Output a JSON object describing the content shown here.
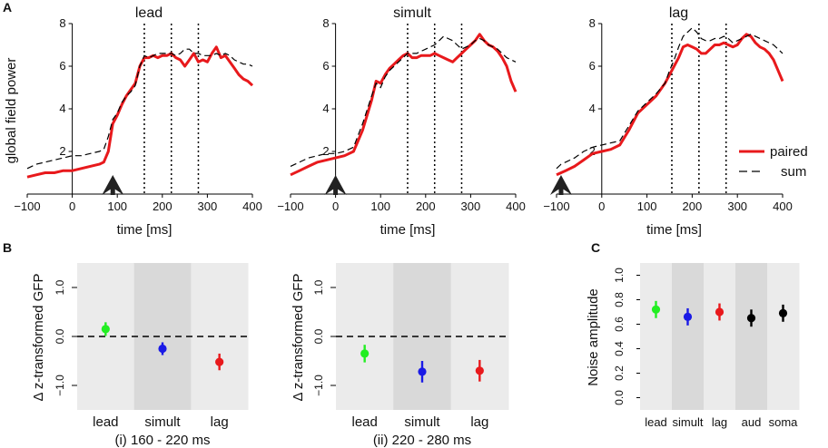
{
  "panel_labels": {
    "a": "A",
    "b": "B",
    "c": "C"
  },
  "legend": {
    "paired": "paired",
    "sum": "sum"
  },
  "colors": {
    "paired": "#e8191c",
    "sum": "#000000",
    "green": "#22ee22",
    "blue": "#1a1ae6",
    "red": "#e8191c",
    "black": "#000000",
    "bg_light": "#ebebeb",
    "bg_dark": "#d9d9d9"
  },
  "chart_data": [
    {
      "type": "line",
      "title": "lead",
      "xlabel": "time [ms]",
      "ylabel": "global field power",
      "xlim": [
        -100,
        400
      ],
      "ylim": [
        0,
        8
      ],
      "xticks": [
        "−100",
        "0",
        "100",
        "200",
        "300",
        "400"
      ],
      "xtick_values": [
        -100,
        0,
        100,
        200,
        300,
        400
      ],
      "yticks": [
        "2",
        "4",
        "6",
        "8"
      ],
      "ytick_values": [
        2,
        4,
        6,
        8
      ],
      "vlines": [
        160,
        220,
        280
      ],
      "stimulus_onset_ms": 90,
      "series": [
        {
          "name": "paired",
          "x": [
            -100,
            -80,
            -60,
            -40,
            -20,
            0,
            20,
            40,
            60,
            70,
            80,
            90,
            100,
            110,
            120,
            130,
            140,
            150,
            160,
            170,
            180,
            190,
            200,
            210,
            220,
            230,
            240,
            250,
            260,
            270,
            280,
            290,
            300,
            310,
            320,
            330,
            340,
            350,
            360,
            370,
            380,
            390,
            400
          ],
          "values": [
            0.8,
            0.9,
            1.0,
            1.0,
            1.1,
            1.1,
            1.2,
            1.3,
            1.4,
            1.5,
            2.0,
            3.3,
            3.7,
            4.2,
            4.6,
            4.9,
            5.2,
            6.0,
            6.4,
            6.4,
            6.5,
            6.4,
            6.5,
            6.5,
            6.6,
            6.4,
            6.3,
            6.0,
            6.3,
            6.6,
            6.2,
            6.3,
            6.2,
            6.6,
            6.9,
            6.4,
            6.5,
            6.2,
            5.9,
            5.6,
            5.4,
            5.3,
            5.1
          ]
        },
        {
          "name": "sum",
          "x": [
            -100,
            -80,
            -60,
            -40,
            -20,
            0,
            20,
            40,
            60,
            70,
            80,
            90,
            100,
            110,
            120,
            130,
            140,
            150,
            160,
            170,
            180,
            190,
            200,
            210,
            220,
            230,
            240,
            250,
            260,
            270,
            280,
            290,
            300,
            310,
            320,
            330,
            340,
            350,
            360,
            370,
            380,
            390,
            400
          ],
          "values": [
            1.2,
            1.4,
            1.5,
            1.6,
            1.7,
            1.8,
            1.8,
            1.9,
            2.0,
            2.1,
            2.7,
            3.5,
            3.8,
            4.3,
            4.6,
            4.8,
            5.1,
            6.0,
            6.5,
            6.4,
            6.5,
            6.6,
            6.6,
            6.6,
            6.6,
            6.5,
            6.6,
            6.8,
            6.8,
            6.6,
            6.6,
            6.5,
            6.5,
            6.5,
            6.6,
            6.5,
            6.6,
            6.5,
            6.3,
            6.2,
            6.1,
            6.1,
            6.0
          ]
        }
      ]
    },
    {
      "type": "line",
      "title": "simult",
      "xlabel": "time [ms]",
      "ylabel": "",
      "xlim": [
        -100,
        400
      ],
      "ylim": [
        0,
        8
      ],
      "xticks": [
        "−100",
        "0",
        "100",
        "200",
        "300",
        "400"
      ],
      "xtick_values": [
        -100,
        0,
        100,
        200,
        300,
        400
      ],
      "yticks": [
        "2",
        "4",
        "6",
        "8"
      ],
      "ytick_values": [
        2,
        4,
        6,
        8
      ],
      "vlines": [
        160,
        220,
        280
      ],
      "stimulus_onset_ms": 0,
      "series": [
        {
          "name": "paired",
          "x": [
            -100,
            -80,
            -60,
            -40,
            -20,
            0,
            20,
            40,
            60,
            80,
            90,
            100,
            110,
            120,
            130,
            140,
            150,
            160,
            170,
            180,
            190,
            200,
            210,
            220,
            230,
            240,
            250,
            260,
            270,
            280,
            290,
            300,
            310,
            320,
            330,
            340,
            350,
            360,
            370,
            380,
            390,
            400
          ],
          "values": [
            0.9,
            1.1,
            1.3,
            1.5,
            1.6,
            1.7,
            1.8,
            2.0,
            3.0,
            4.4,
            5.3,
            5.2,
            5.6,
            5.9,
            6.1,
            6.3,
            6.5,
            6.6,
            6.4,
            6.4,
            6.5,
            6.5,
            6.5,
            6.6,
            6.5,
            6.4,
            6.3,
            6.2,
            6.4,
            6.6,
            6.8,
            7.0,
            7.2,
            7.5,
            7.2,
            7.0,
            6.9,
            6.7,
            6.4,
            6.0,
            5.3,
            4.8
          ]
        },
        {
          "name": "sum",
          "x": [
            -100,
            -80,
            -60,
            -40,
            -20,
            0,
            20,
            40,
            60,
            80,
            90,
            100,
            110,
            120,
            130,
            140,
            150,
            160,
            170,
            180,
            190,
            200,
            210,
            220,
            230,
            240,
            250,
            260,
            270,
            280,
            290,
            300,
            310,
            320,
            330,
            340,
            350,
            360,
            370,
            380,
            390,
            400
          ],
          "values": [
            1.3,
            1.5,
            1.7,
            1.8,
            1.9,
            1.9,
            2.0,
            2.2,
            3.3,
            4.6,
            5.2,
            5.0,
            5.5,
            5.8,
            6.0,
            6.2,
            6.4,
            6.6,
            6.6,
            6.6,
            6.7,
            6.8,
            6.9,
            7.0,
            7.2,
            7.4,
            7.3,
            7.2,
            7.0,
            6.8,
            6.9,
            7.0,
            7.2,
            7.3,
            7.2,
            7.0,
            6.9,
            6.8,
            6.6,
            6.4,
            6.3,
            6.2
          ]
        }
      ]
    },
    {
      "type": "line",
      "title": "lag",
      "xlabel": "time [ms]",
      "ylabel": "",
      "xlim": [
        -100,
        400
      ],
      "ylim": [
        0,
        8
      ],
      "xticks": [
        "−100",
        "0",
        "100",
        "200",
        "300",
        "400"
      ],
      "xtick_values": [
        -100,
        0,
        100,
        200,
        300,
        400
      ],
      "yticks": [
        "2",
        "4",
        "6",
        "8"
      ],
      "ytick_values": [
        2,
        4,
        6,
        8
      ],
      "vlines": [
        155,
        215,
        275
      ],
      "stimulus_onset_ms": -90,
      "series": [
        {
          "name": "paired",
          "x": [
            -100,
            -90,
            -80,
            -60,
            -40,
            -20,
            0,
            20,
            40,
            60,
            80,
            100,
            120,
            140,
            150,
            160,
            170,
            180,
            190,
            200,
            210,
            220,
            230,
            240,
            250,
            260,
            270,
            280,
            290,
            300,
            310,
            320,
            330,
            340,
            350,
            360,
            370,
            380,
            390,
            400
          ],
          "values": [
            0.9,
            1.0,
            1.1,
            1.3,
            1.6,
            1.9,
            2.0,
            2.1,
            2.3,
            3.0,
            3.8,
            4.2,
            4.6,
            5.2,
            5.6,
            6.0,
            6.4,
            6.9,
            7.0,
            6.9,
            6.8,
            6.6,
            6.6,
            6.8,
            7.0,
            7.0,
            7.1,
            7.0,
            6.9,
            7.0,
            7.3,
            7.5,
            7.4,
            7.1,
            6.9,
            6.8,
            6.6,
            6.3,
            5.8,
            5.3
          ]
        },
        {
          "name": "sum",
          "x": [
            -100,
            -90,
            -80,
            -60,
            -40,
            -20,
            0,
            20,
            40,
            60,
            80,
            100,
            120,
            140,
            150,
            160,
            170,
            180,
            190,
            200,
            210,
            220,
            230,
            240,
            250,
            260,
            270,
            280,
            290,
            300,
            310,
            320,
            330,
            340,
            350,
            360,
            370,
            380,
            390,
            400
          ],
          "values": [
            1.2,
            1.4,
            1.5,
            1.7,
            2.0,
            2.2,
            2.3,
            2.4,
            2.5,
            3.2,
            3.9,
            4.3,
            4.7,
            5.2,
            5.8,
            6.3,
            6.9,
            7.4,
            7.6,
            7.8,
            7.6,
            7.3,
            7.2,
            7.2,
            7.3,
            7.3,
            7.4,
            7.3,
            7.1,
            7.2,
            7.3,
            7.4,
            7.5,
            7.4,
            7.3,
            7.2,
            7.1,
            7.0,
            6.8,
            6.6
          ]
        }
      ]
    },
    {
      "type": "scatter",
      "subtitle": "(i) 160 - 220 ms",
      "ylabel": "Δ z-transformed GFP",
      "ylim": [
        -1.5,
        1.5
      ],
      "yticks": [
        "−1.0",
        "0.0",
        "1.0"
      ],
      "ytick_values": [
        -1.0,
        0.0,
        1.0
      ],
      "categories": [
        "lead",
        "simult",
        "lag"
      ],
      "values": [
        0.15,
        -0.25,
        -0.52
      ],
      "errors": [
        0.14,
        0.13,
        0.17
      ],
      "colors": [
        "#22ee22",
        "#1a1ae6",
        "#e8191c"
      ]
    },
    {
      "type": "scatter",
      "subtitle": "(ii) 220 - 280 ms",
      "ylabel": "Δ z-transformed GFP",
      "ylim": [
        -1.5,
        1.5
      ],
      "yticks": [
        "−1.0",
        "0.0",
        "1.0"
      ],
      "ytick_values": [
        -1.0,
        0.0,
        1.0
      ],
      "categories": [
        "lead",
        "simult",
        "lag"
      ],
      "values": [
        -0.35,
        -0.72,
        -0.7
      ],
      "errors": [
        0.18,
        0.22,
        0.22
      ],
      "colors": [
        "#22ee22",
        "#1a1ae6",
        "#e8191c"
      ]
    },
    {
      "type": "scatter",
      "ylabel": "Noise amplitude",
      "ylim": [
        0.0,
        1.0
      ],
      "yticks": [
        "0.0",
        "0.2",
        "0.4",
        "0.6",
        "0.8",
        "1.0"
      ],
      "ytick_values": [
        0.0,
        0.2,
        0.4,
        0.6,
        0.8,
        1.0
      ],
      "categories": [
        "lead",
        "simult",
        "lag",
        "aud",
        "soma"
      ],
      "values": [
        0.72,
        0.66,
        0.7,
        0.65,
        0.69
      ],
      "errors": [
        0.07,
        0.07,
        0.07,
        0.07,
        0.07
      ],
      "colors": [
        "#22ee22",
        "#1a1ae6",
        "#e8191c",
        "#000000",
        "#000000"
      ]
    }
  ]
}
